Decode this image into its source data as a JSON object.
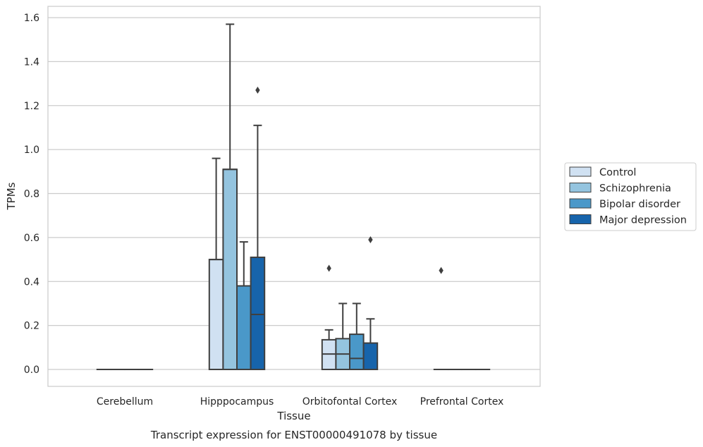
{
  "chart_data": {
    "type": "box",
    "title": "",
    "caption": "Transcript expression for ENST00000491078 by tissue",
    "xlabel": "Tissue",
    "ylabel": "TPMs",
    "ylim": [
      -0.075,
      1.655
    ],
    "yticks": [
      0.0,
      0.2,
      0.4,
      0.6,
      0.8,
      1.0,
      1.2,
      1.4,
      1.6
    ],
    "ytick_labels": [
      "0.0",
      "0.2",
      "0.4",
      "0.6",
      "0.8",
      "1.0",
      "1.2",
      "1.4",
      "1.6"
    ],
    "grid": "horizontal",
    "legend_position": "right",
    "categories": [
      "Cerebellum",
      "Hipppocampus",
      "Orbitofontal Cortex",
      "Prefrontal Cortex"
    ],
    "series": [
      {
        "name": "Control",
        "color": "#d0e1f2",
        "boxes": [
          {
            "min": 0.0,
            "q1": 0.0,
            "median": 0.0,
            "q3": 0.0,
            "max": 0.0,
            "outliers": []
          },
          {
            "min": 0.0,
            "q1": 0.0,
            "median": 0.5,
            "q3": 0.5,
            "max": 0.96,
            "outliers": []
          },
          {
            "min": 0.0,
            "q1": 0.0,
            "median": 0.07,
            "q3": 0.135,
            "max": 0.18,
            "outliers": [
              0.46
            ]
          },
          {
            "min": 0.0,
            "q1": 0.0,
            "median": 0.0,
            "q3": 0.0,
            "max": 0.0,
            "outliers": [
              0.45
            ]
          }
        ]
      },
      {
        "name": "Schizophrenia",
        "color": "#94c4df",
        "boxes": [
          {
            "min": 0.0,
            "q1": 0.0,
            "median": 0.0,
            "q3": 0.0,
            "max": 0.0,
            "outliers": []
          },
          {
            "min": 0.0,
            "q1": 0.0,
            "median": 0.91,
            "q3": 0.91,
            "max": 1.57,
            "outliers": []
          },
          {
            "min": 0.0,
            "q1": 0.0,
            "median": 0.07,
            "q3": 0.14,
            "max": 0.3,
            "outliers": []
          },
          {
            "min": 0.0,
            "q1": 0.0,
            "median": 0.0,
            "q3": 0.0,
            "max": 0.0,
            "outliers": []
          }
        ]
      },
      {
        "name": "Bipolar disorder",
        "color": "#4a98c9",
        "boxes": [
          {
            "min": 0.0,
            "q1": 0.0,
            "median": 0.0,
            "q3": 0.0,
            "max": 0.0,
            "outliers": []
          },
          {
            "min": 0.0,
            "q1": 0.0,
            "median": 0.38,
            "q3": 0.38,
            "max": 0.58,
            "outliers": []
          },
          {
            "min": 0.0,
            "q1": 0.0,
            "median": 0.05,
            "q3": 0.16,
            "max": 0.3,
            "outliers": []
          },
          {
            "min": 0.0,
            "q1": 0.0,
            "median": 0.0,
            "q3": 0.0,
            "max": 0.0,
            "outliers": []
          }
        ]
      },
      {
        "name": "Major depression",
        "color": "#1764ab",
        "boxes": [
          {
            "min": 0.0,
            "q1": 0.0,
            "median": 0.0,
            "q3": 0.0,
            "max": 0.0,
            "outliers": []
          },
          {
            "min": 0.0,
            "q1": 0.0,
            "median": 0.25,
            "q3": 0.51,
            "max": 1.11,
            "outliers": [
              1.27
            ]
          },
          {
            "min": 0.0,
            "q1": 0.0,
            "median": 0.0,
            "q3": 0.12,
            "max": 0.23,
            "outliers": [
              0.59
            ]
          },
          {
            "min": 0.0,
            "q1": 0.0,
            "median": 0.0,
            "q3": 0.0,
            "max": 0.0,
            "outliers": []
          }
        ]
      }
    ]
  }
}
